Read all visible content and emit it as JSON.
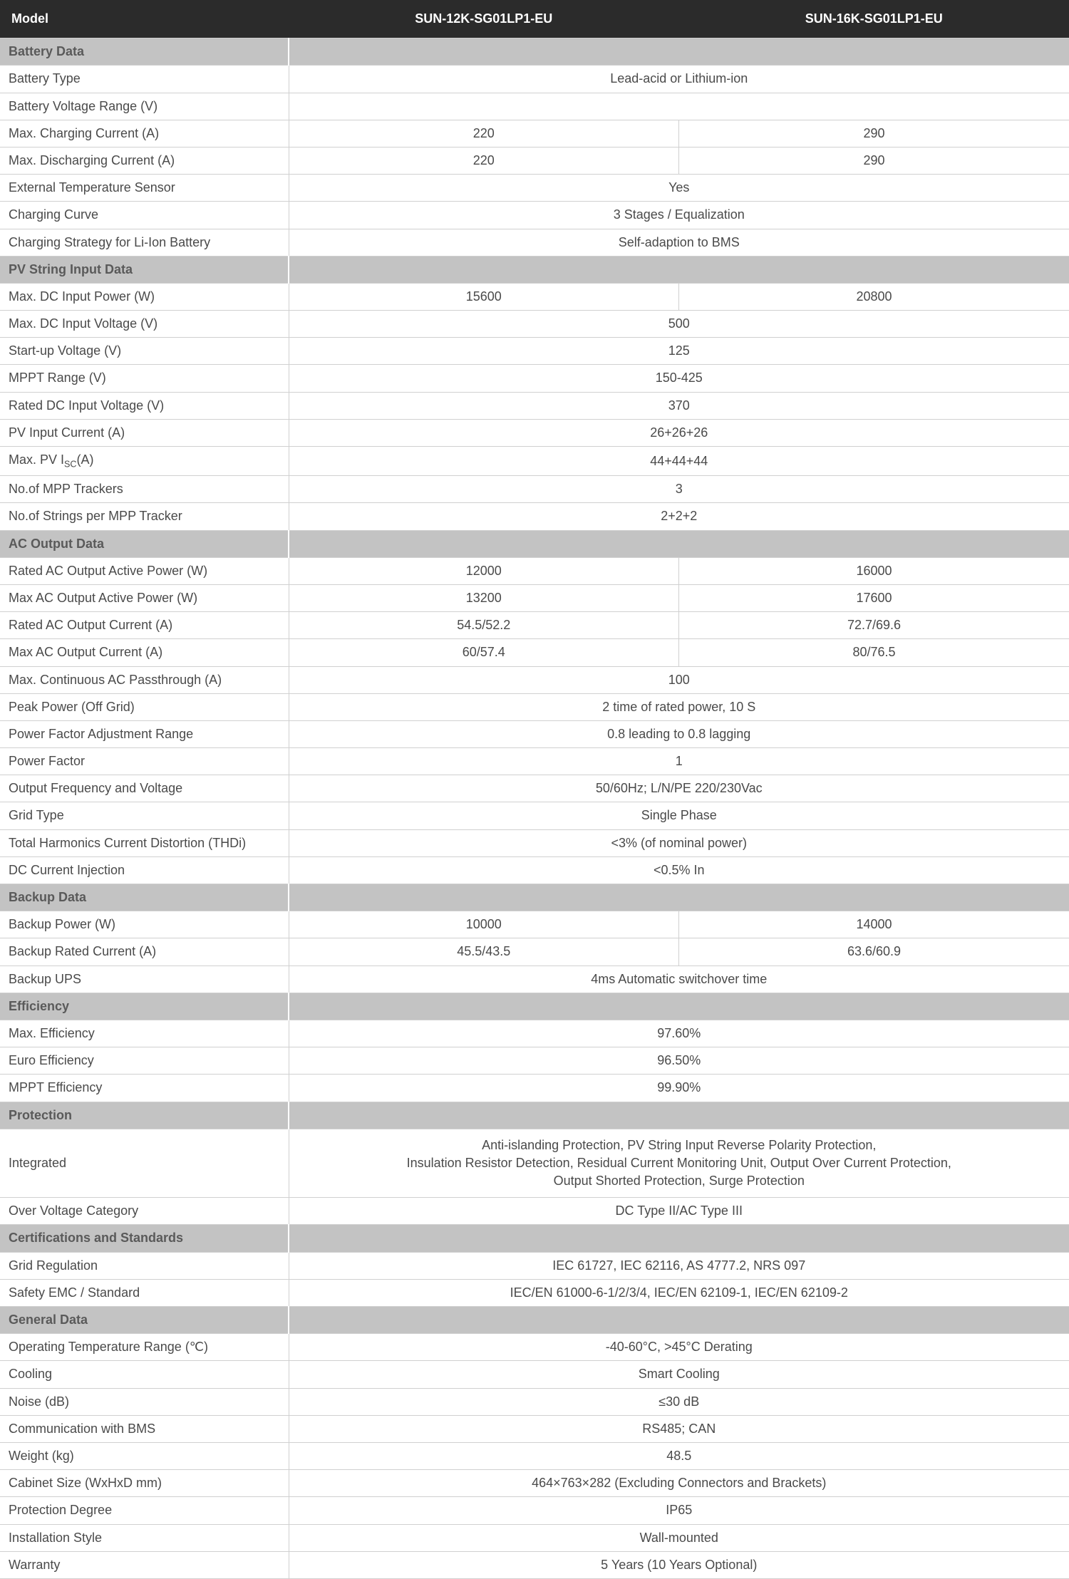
{
  "header": {
    "model_label": "Model",
    "model_a": "SUN-12K-SG01LP1-EU",
    "model_b": "SUN-16K-SG01LP1-EU"
  },
  "sections": [
    {
      "title": "Battery Data",
      "rows": [
        {
          "label": "Battery Type",
          "span": "Lead-acid or Lithium-ion"
        },
        {
          "label": "Battery Voltage Range (V)",
          "span": ""
        },
        {
          "label": "Max. Charging Current (A)",
          "a": "220",
          "b": "290"
        },
        {
          "label": "Max. Discharging Current (A)",
          "a": "220",
          "b": "290"
        },
        {
          "label": "External Temperature Sensor",
          "span": "Yes"
        },
        {
          "label": "Charging Curve",
          "span": "3 Stages / Equalization"
        },
        {
          "label": "Charging Strategy for Li-Ion Battery",
          "span": "Self-adaption to BMS"
        }
      ]
    },
    {
      "title": "PV String Input Data",
      "rows": [
        {
          "label": "Max. DC Input Power (W)",
          "a": "15600",
          "b": "20800"
        },
        {
          "label": "Max. DC Input Voltage (V)",
          "span": "500"
        },
        {
          "label": "Start-up Voltage (V)",
          "span": "125"
        },
        {
          "label": "MPPT Range (V)",
          "span": "150-425"
        },
        {
          "label": "Rated DC Input Voltage (V)",
          "span": "370"
        },
        {
          "label": "PV Input Current (A)",
          "span": "26+26+26"
        },
        {
          "label_html": "Max. PV I<sub>SC</sub>(A)",
          "span": "44+44+44"
        },
        {
          "label": "No.of MPP Trackers",
          "span": "3"
        },
        {
          "label": "No.of Strings per MPP Tracker",
          "span": "2+2+2"
        }
      ]
    },
    {
      "title": "AC Output Data",
      "rows": [
        {
          "label": "Rated AC Output Active Power (W)",
          "a": "12000",
          "b": "16000"
        },
        {
          "label": "Max AC Output Active Power (W)",
          "a": "13200",
          "b": "17600"
        },
        {
          "label": "Rated AC Output Current (A)",
          "a": "54.5/52.2",
          "b": "72.7/69.6"
        },
        {
          "label": "Max AC Output Current (A)",
          "a": "60/57.4",
          "b": "80/76.5"
        },
        {
          "label": "Max. Continuous AC Passthrough (A)",
          "span": "100"
        },
        {
          "label": "Peak Power (Off Grid)",
          "span": "2 time of rated power, 10 S"
        },
        {
          "label": "Power Factor Adjustment Range",
          "span": "0.8 leading to 0.8 lagging"
        },
        {
          "label": "Power Factor",
          "span": "1"
        },
        {
          "label": "Output Frequency and Voltage",
          "span": "50/60Hz; L/N/PE  220/230Vac"
        },
        {
          "label": "Grid Type",
          "span": "Single Phase"
        },
        {
          "label": "Total Harmonics Current Distortion (THDi)",
          "span": "<3% (of nominal power)"
        },
        {
          "label": "DC Current Injection",
          "span": "<0.5% In"
        }
      ]
    },
    {
      "title": "Backup Data",
      "rows": [
        {
          "label": "Backup Power (W)",
          "a": "10000",
          "b": "14000"
        },
        {
          "label": "Backup Rated Current (A)",
          "a": "45.5/43.5",
          "b": "63.6/60.9"
        },
        {
          "label": "Backup UPS",
          "span": "4ms Automatic switchover time"
        }
      ]
    },
    {
      "title": "Efficiency",
      "rows": [
        {
          "label": "Max. Efficiency",
          "span": "97.60%"
        },
        {
          "label": "Euro Efficiency",
          "span": "96.50%"
        },
        {
          "label": "MPPT Efficiency",
          "span": "99.90%"
        }
      ]
    },
    {
      "title": "Protection",
      "rows": [
        {
          "label": "Integrated",
          "span": "Anti-islanding Protection, PV String Input Reverse Polarity Protection,\nInsulation Resistor Detection, Residual Current Monitoring Unit, Output Over Current Protection,\nOutput Shorted Protection, Surge Protection",
          "multiline": true
        },
        {
          "label": "Over Voltage Category",
          "span": "DC Type II/AC Type III"
        }
      ]
    },
    {
      "title": "Certifications and Standards",
      "rows": [
        {
          "label": "Grid Regulation",
          "span": "IEC 61727, IEC 62116, AS 4777.2, NRS 097"
        },
        {
          "label": "Safety EMC / Standard",
          "span": "IEC/EN 61000-6-1/2/3/4, IEC/EN 62109-1, IEC/EN 62109-2"
        }
      ]
    },
    {
      "title": "General Data",
      "rows": [
        {
          "label": "Operating Temperature Range (℃)",
          "span": "-40-60°C, >45°C Derating"
        },
        {
          "label": "Cooling",
          "span": "Smart Cooling"
        },
        {
          "label": "Noise (dB)",
          "span": "≤30 dB"
        },
        {
          "label": "Communication with BMS",
          "span": "RS485; CAN"
        },
        {
          "label": "Weight (kg)",
          "span": "48.5"
        },
        {
          "label": "Cabinet Size (WxHxD mm)",
          "span": "464×763×282 (Excluding Connectors and Brackets)"
        },
        {
          "label": "Protection Degree",
          "span": "IP65"
        },
        {
          "label": "Installation Style",
          "span": "Wall-mounted"
        },
        {
          "label": "Warranty",
          "span": "5 Years (10 Years Optional)"
        }
      ]
    }
  ]
}
